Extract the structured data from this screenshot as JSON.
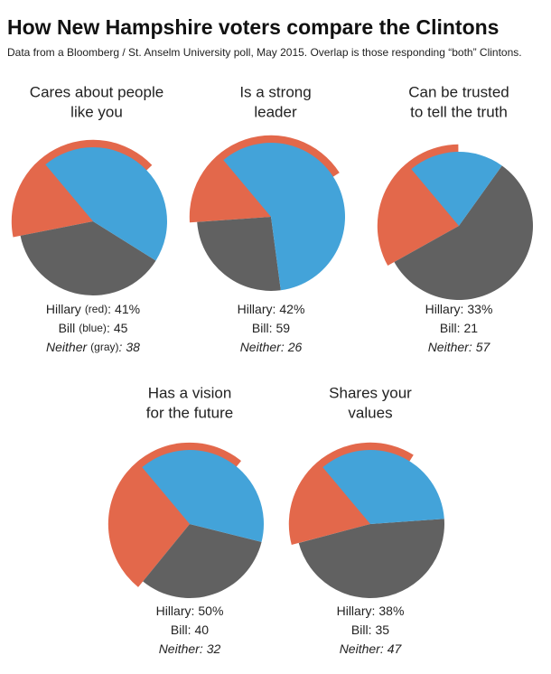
{
  "title": "How New Hampshire voters compare the Clintons",
  "subtitle": "Data from a Bloomberg / St. Anselm University poll, May 2015. Overlap is those responding “both” Clintons.",
  "separator": ":",
  "chart_data": [
    {
      "type": "pie",
      "title": [
        "Cares about people",
        "like you"
      ],
      "series": [
        {
          "name": "Hillary",
          "hint": "(red)",
          "color": "#e3684b",
          "value": 41,
          "value_label": "41%"
        },
        {
          "name": "Bill",
          "hint": "(blue)",
          "color": "#43a3d9",
          "value": 45
        },
        {
          "name": "Neither",
          "hint": "(gray)",
          "color": "#616161",
          "value": 38
        }
      ]
    },
    {
      "type": "pie",
      "title": [
        "Is a strong",
        "leader"
      ],
      "series": [
        {
          "name": "Hillary",
          "color": "#e3684b",
          "value": 42,
          "value_label": "42%"
        },
        {
          "name": "Bill",
          "color": "#43a3d9",
          "value": 59
        },
        {
          "name": "Neither",
          "color": "#616161",
          "value": 26
        }
      ]
    },
    {
      "type": "pie",
      "title": [
        "Can be trusted",
        "to tell the truth"
      ],
      "series": [
        {
          "name": "Hillary",
          "color": "#e3684b",
          "value": 33,
          "value_label": "33%"
        },
        {
          "name": "Bill",
          "color": "#43a3d9",
          "value": 21
        },
        {
          "name": "Neither",
          "color": "#616161",
          "value": 57
        }
      ]
    },
    {
      "type": "pie",
      "title": [
        "Has a vision",
        "for the future"
      ],
      "series": [
        {
          "name": "Hillary",
          "color": "#e3684b",
          "value": 50,
          "value_label": "50%"
        },
        {
          "name": "Bill",
          "color": "#43a3d9",
          "value": 40
        },
        {
          "name": "Neither",
          "color": "#616161",
          "value": 32
        }
      ]
    },
    {
      "type": "pie",
      "title": [
        "Shares your",
        "values"
      ],
      "series": [
        {
          "name": "Hillary",
          "color": "#e3684b",
          "value": 38,
          "value_label": "38%"
        },
        {
          "name": "Bill",
          "color": "#43a3d9",
          "value": 35
        },
        {
          "name": "Neither",
          "color": "#616161",
          "value": 47
        }
      ]
    }
  ]
}
